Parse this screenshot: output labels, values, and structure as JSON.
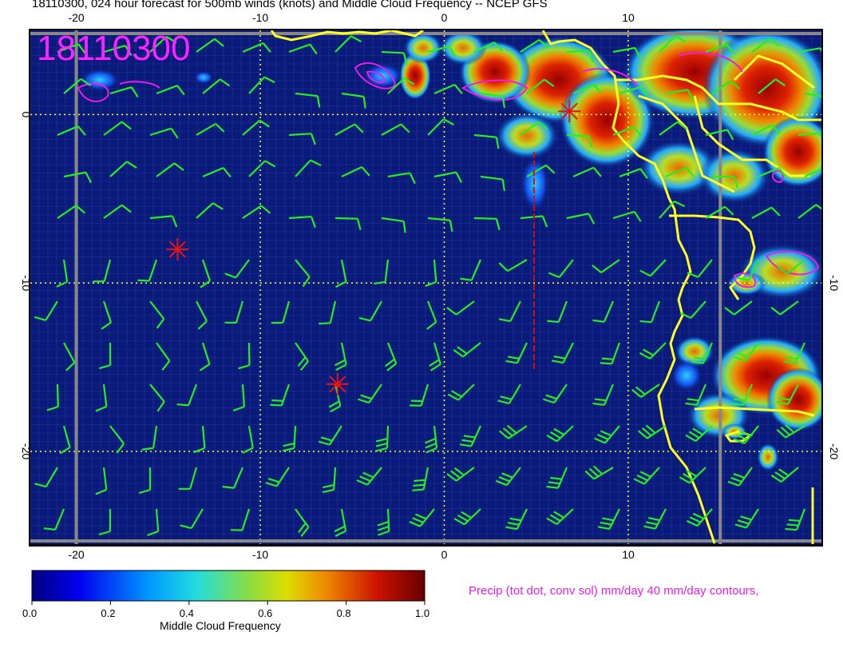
{
  "title": "18110300, 024 hour forecast for 500mb winds (knots) and Middle Cloud Frequency -- NCEP GFS",
  "stamp": "18110300",
  "map": {
    "lon_range": [
      -22.5,
      20.5
    ],
    "lat_range": [
      -25.5,
      5
    ],
    "x_ticks_top": [
      "-20",
      "-10",
      "0",
      "10"
    ],
    "x_ticks_bottom": [
      "-20",
      "-10",
      "0",
      "10"
    ],
    "y_ticks_left": [
      "0",
      "-10",
      "-20"
    ],
    "y_ticks_right": [
      "-10",
      "-20"
    ],
    "x_tick_values": [
      -20,
      -10,
      0,
      10
    ],
    "y_tick_values": [
      0,
      -10,
      -20
    ],
    "ocean_color": "#0a1a7a",
    "wind_barb_color": "#22ee22",
    "coast_color": "#ffff22",
    "precip_contour_color": "#e61ee6",
    "markers": [
      {
        "name": "storm-marker-1",
        "lon": -14.5,
        "lat": -8
      },
      {
        "name": "storm-marker-2",
        "lon": -5.8,
        "lat": -16
      },
      {
        "name": "storm-marker-3",
        "lon": 6.8,
        "lat": 0.2
      }
    ]
  },
  "colorbar": {
    "title": "Middle Cloud Frequency",
    "labels": [
      "0.0",
      "0.2",
      "0.4",
      "0.6",
      "0.8",
      "1.0"
    ],
    "min": 0,
    "max": 1
  },
  "precip_note": "Precip (tot dot, conv sol) mm/day 40 mm/day contours,"
}
